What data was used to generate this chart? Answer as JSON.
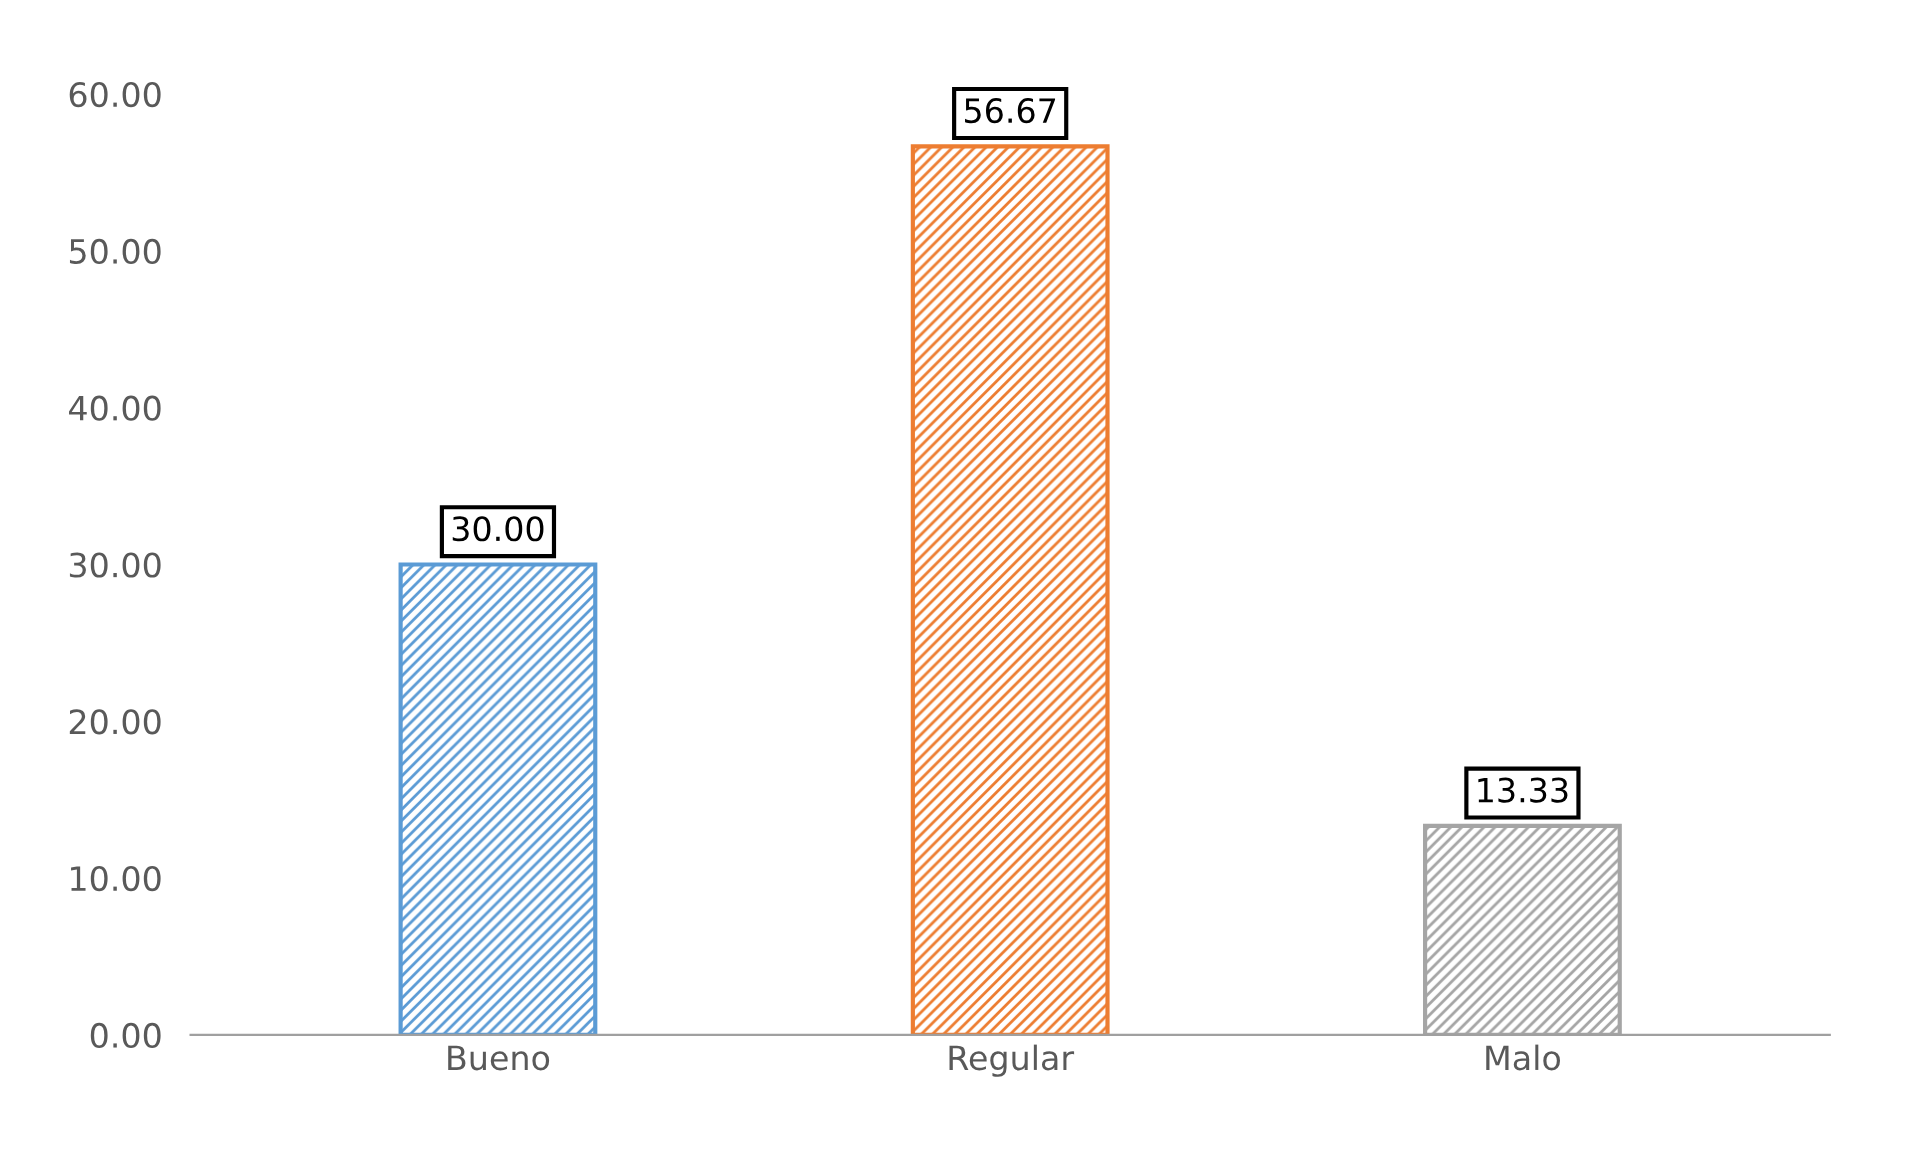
{
  "chart_data": {
    "type": "bar",
    "categories": [
      "Bueno",
      "Regular",
      "Malo"
    ],
    "values": [
      30.0,
      56.67,
      13.33
    ],
    "colors": [
      "#5b9bd5",
      "#ed7d31",
      "#a5a5a5"
    ],
    "value_labels": [
      "30.00",
      "56.67",
      "13.33"
    ],
    "ylim": [
      0,
      60
    ],
    "yticks": [
      {
        "value": 0,
        "label": "0.00"
      },
      {
        "value": 10,
        "label": "10.00"
      },
      {
        "value": 20,
        "label": "20.00"
      },
      {
        "value": 30,
        "label": "30.00"
      },
      {
        "value": 40,
        "label": "40.00"
      },
      {
        "value": 50,
        "label": "50.00"
      },
      {
        "value": 60,
        "label": "60.00"
      }
    ],
    "grid": false
  }
}
